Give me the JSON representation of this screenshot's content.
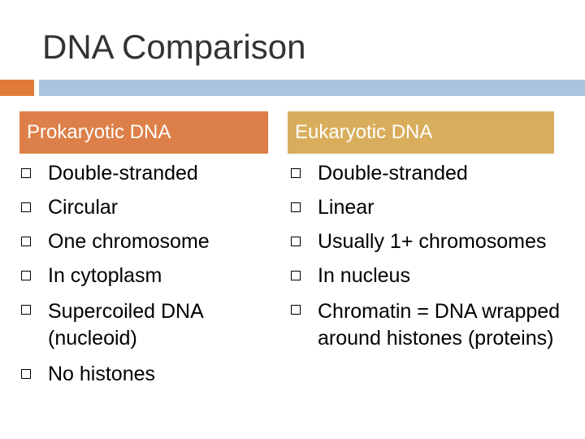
{
  "slide": {
    "title": "DNA Comparison"
  },
  "colors": {
    "title_text": "#333333",
    "accent_bar": "#e07b39",
    "main_bar": "#a9c4dc",
    "left_header_bg": "#dd7f48",
    "right_header_bg": "#d8ae5c",
    "header_text": "#ffffff"
  },
  "left_column": {
    "header": "Prokaryotic DNA",
    "items": [
      "Double-stranded",
      "Circular",
      "One chromosome",
      "In cytoplasm",
      "Supercoiled DNA (nucleoid)",
      "No histones"
    ]
  },
  "right_column": {
    "header": "Eukaryotic DNA",
    "items": [
      "Double-stranded",
      "Linear",
      "Usually 1+ chromosomes",
      "In nucleus",
      "Chromatin = DNA wrapped around histones (proteins)"
    ]
  },
  "icons": {
    "bullet": "square-box-icon"
  }
}
